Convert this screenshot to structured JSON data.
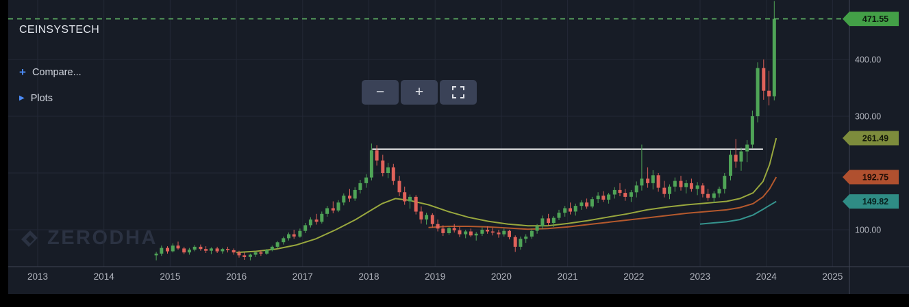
{
  "header": {
    "symbol": "CEINSYSTECH",
    "compare": {
      "icon": "+",
      "label": "Compare..."
    },
    "plots": {
      "icon": "▶",
      "label": "Plots"
    }
  },
  "toolbar": {
    "zoom_out_icon": "−",
    "zoom_in_icon": "+",
    "fullscreen_icon": "expand-corners"
  },
  "watermark": {
    "text": "ZERODHA"
  },
  "colors": {
    "background": "#171c26",
    "grid": "#232836",
    "axis_text": "#b2b5be",
    "separator": "#3f4454",
    "accent_blue": "#4c8bf5"
  },
  "time_axis": {
    "years": [
      2013,
      2014,
      2015,
      2016,
      2017,
      2018,
      2019,
      2020,
      2021,
      2022,
      2023,
      2024,
      2025
    ]
  },
  "price_axis": {
    "ticks": [
      {
        "label": "400.00",
        "price": 400
      },
      {
        "label": "300.00",
        "price": 300
      },
      {
        "label": "100.00",
        "price": 100
      }
    ],
    "tags": [
      {
        "value": "471.55",
        "price": 471.55,
        "color": "#43a047",
        "text_color": "#0c1a0e",
        "kind": "last-price"
      },
      {
        "value": "261.49",
        "price": 261.49,
        "color": "#7d8c3c",
        "text_color": "#14180a",
        "kind": "ma-long"
      },
      {
        "value": "192.75",
        "price": 192.75,
        "color": "#b0502f",
        "text_color": "#1e0d06",
        "kind": "ma-mid"
      },
      {
        "value": "149.82",
        "price": 149.82,
        "color": "#2f8c85",
        "text_color": "#07211f",
        "kind": "ma-short"
      }
    ]
  },
  "chart_data": {
    "type": "candlestick",
    "symbol": "CEINSYSTECH",
    "interval": "monthly",
    "x_range": [
      2012.56,
      2025.26
    ],
    "y_range_price": [
      35,
      505
    ],
    "grid_prices": [
      100,
      200,
      300,
      400
    ],
    "last_price": 471.55,
    "up_color": "#4fa457",
    "down_color": "#e0625a",
    "overlays": {
      "horizontal_line": {
        "price": 242,
        "from": 2018.05,
        "to": 2023.95,
        "color": "#e8e8e8"
      },
      "last_price_line": {
        "price": 471.55,
        "style": "dashed",
        "color": "#66bf6a"
      }
    },
    "candles": [
      [
        2014.79,
        55,
        61,
        46,
        58
      ],
      [
        2014.87,
        58,
        72,
        54,
        68
      ],
      [
        2014.96,
        68,
        71,
        58,
        62
      ],
      [
        2015.04,
        62,
        76,
        60,
        72
      ],
      [
        2015.12,
        72,
        79,
        65,
        67
      ],
      [
        2015.21,
        67,
        70,
        57,
        60
      ],
      [
        2015.29,
        60,
        68,
        56,
        65
      ],
      [
        2015.37,
        65,
        73,
        62,
        70
      ],
      [
        2015.46,
        70,
        74,
        63,
        66
      ],
      [
        2015.54,
        66,
        71,
        59,
        63
      ],
      [
        2015.62,
        63,
        69,
        57,
        67
      ],
      [
        2015.71,
        67,
        70,
        59,
        62
      ],
      [
        2015.79,
        62,
        68,
        58,
        66
      ],
      [
        2015.87,
        66,
        70,
        60,
        64
      ],
      [
        2015.96,
        64,
        67,
        56,
        60
      ],
      [
        2016.04,
        60,
        63,
        51,
        55
      ],
      [
        2016.12,
        55,
        60,
        47,
        52
      ],
      [
        2016.21,
        52,
        58,
        46,
        56
      ],
      [
        2016.29,
        56,
        62,
        52,
        60
      ],
      [
        2016.37,
        60,
        64,
        54,
        58
      ],
      [
        2016.46,
        58,
        66,
        56,
        64
      ],
      [
        2016.54,
        64,
        72,
        62,
        70
      ],
      [
        2016.62,
        70,
        80,
        67,
        78
      ],
      [
        2016.71,
        78,
        88,
        74,
        85
      ],
      [
        2016.79,
        85,
        95,
        81,
        92
      ],
      [
        2016.87,
        92,
        100,
        84,
        88
      ],
      [
        2016.96,
        88,
        102,
        86,
        98
      ],
      [
        2017.04,
        98,
        112,
        94,
        108
      ],
      [
        2017.12,
        108,
        122,
        104,
        118
      ],
      [
        2017.21,
        118,
        128,
        109,
        114
      ],
      [
        2017.29,
        114,
        132,
        111,
        128
      ],
      [
        2017.37,
        128,
        142,
        123,
        138
      ],
      [
        2017.46,
        138,
        150,
        129,
        134
      ],
      [
        2017.54,
        134,
        152,
        131,
        148
      ],
      [
        2017.62,
        148,
        164,
        143,
        160
      ],
      [
        2017.71,
        160,
        172,
        149,
        155
      ],
      [
        2017.79,
        155,
        175,
        151,
        170
      ],
      [
        2017.87,
        170,
        188,
        164,
        182
      ],
      [
        2017.96,
        182,
        198,
        174,
        192
      ],
      [
        2018.04,
        192,
        252,
        187,
        240
      ],
      [
        2018.12,
        240,
        249,
        213,
        222
      ],
      [
        2018.21,
        222,
        232,
        194,
        200
      ],
      [
        2018.29,
        200,
        218,
        191,
        210
      ],
      [
        2018.37,
        210,
        216,
        179,
        186
      ],
      [
        2018.46,
        186,
        195,
        159,
        166
      ],
      [
        2018.54,
        166,
        176,
        144,
        150
      ],
      [
        2018.62,
        150,
        162,
        137,
        158
      ],
      [
        2018.71,
        158,
        161,
        127,
        132
      ],
      [
        2018.79,
        132,
        141,
        111,
        118
      ],
      [
        2018.87,
        118,
        130,
        109,
        126
      ],
      [
        2018.96,
        126,
        129,
        104,
        110
      ],
      [
        2019.04,
        110,
        118,
        97,
        102
      ],
      [
        2019.12,
        102,
        108,
        89,
        94
      ],
      [
        2019.21,
        94,
        106,
        91,
        103
      ],
      [
        2019.29,
        103,
        110,
        95,
        99
      ],
      [
        2019.37,
        99,
        105,
        87,
        92
      ],
      [
        2019.46,
        92,
        100,
        85,
        97
      ],
      [
        2019.54,
        97,
        102,
        87,
        90
      ],
      [
        2019.62,
        90,
        96,
        81,
        93
      ],
      [
        2019.71,
        93,
        104,
        89,
        100
      ],
      [
        2019.79,
        100,
        106,
        93,
        97
      ],
      [
        2019.87,
        97,
        103,
        90,
        95
      ],
      [
        2019.96,
        95,
        100,
        86,
        92
      ],
      [
        2020.04,
        92,
        102,
        88,
        98
      ],
      [
        2020.12,
        98,
        100,
        83,
        87
      ],
      [
        2020.21,
        87,
        90,
        61,
        70
      ],
      [
        2020.29,
        70,
        88,
        65,
        84
      ],
      [
        2020.37,
        84,
        92,
        77,
        88
      ],
      [
        2020.46,
        88,
        102,
        84,
        98
      ],
      [
        2020.54,
        98,
        110,
        93,
        106
      ],
      [
        2020.62,
        106,
        125,
        101,
        120
      ],
      [
        2020.71,
        120,
        128,
        107,
        112
      ],
      [
        2020.79,
        112,
        124,
        105,
        121
      ],
      [
        2020.87,
        121,
        135,
        117,
        130
      ],
      [
        2020.96,
        130,
        142,
        123,
        138
      ],
      [
        2021.04,
        138,
        148,
        127,
        132
      ],
      [
        2021.12,
        132,
        146,
        125,
        142
      ],
      [
        2021.21,
        142,
        152,
        135,
        148
      ],
      [
        2021.29,
        148,
        155,
        137,
        141
      ],
      [
        2021.37,
        141,
        158,
        138,
        154
      ],
      [
        2021.46,
        154,
        166,
        147,
        160
      ],
      [
        2021.54,
        160,
        168,
        149,
        153
      ],
      [
        2021.62,
        153,
        165,
        146,
        162
      ],
      [
        2021.71,
        162,
        175,
        155,
        170
      ],
      [
        2021.79,
        170,
        182,
        159,
        165
      ],
      [
        2021.87,
        165,
        172,
        151,
        158
      ],
      [
        2021.96,
        158,
        170,
        149,
        166
      ],
      [
        2022.04,
        166,
        185,
        157,
        178
      ],
      [
        2022.12,
        178,
        250,
        169,
        190
      ],
      [
        2022.21,
        190,
        210,
        174,
        182
      ],
      [
        2022.29,
        182,
        205,
        171,
        196
      ],
      [
        2022.37,
        196,
        200,
        167,
        174
      ],
      [
        2022.46,
        174,
        186,
        157,
        163
      ],
      [
        2022.54,
        163,
        180,
        154,
        176
      ],
      [
        2022.62,
        176,
        192,
        167,
        186
      ],
      [
        2022.71,
        186,
        195,
        169,
        175
      ],
      [
        2022.79,
        175,
        188,
        164,
        182
      ],
      [
        2022.87,
        182,
        190,
        167,
        172
      ],
      [
        2022.96,
        172,
        184,
        161,
        178
      ],
      [
        2023.04,
        178,
        182,
        157,
        163
      ],
      [
        2023.12,
        163,
        172,
        151,
        156
      ],
      [
        2023.21,
        156,
        168,
        147,
        164
      ],
      [
        2023.29,
        164,
        176,
        157,
        172
      ],
      [
        2023.37,
        172,
        200,
        164,
        195
      ],
      [
        2023.46,
        195,
        240,
        187,
        232
      ],
      [
        2023.54,
        232,
        260,
        209,
        220
      ],
      [
        2023.62,
        220,
        245,
        204,
        238
      ],
      [
        2023.71,
        238,
        258,
        219,
        250
      ],
      [
        2023.79,
        250,
        310,
        244,
        300
      ],
      [
        2023.87,
        300,
        395,
        289,
        385
      ],
      [
        2023.96,
        385,
        400,
        329,
        345
      ],
      [
        2024.04,
        345,
        380,
        319,
        335
      ],
      [
        2024.12,
        335,
        503,
        328,
        471.55
      ]
    ],
    "moving_averages": [
      {
        "name": "ma-long-green",
        "color": "#99a83e",
        "last_value": 261.49,
        "points": [
          [
            2016.0,
            60
          ],
          [
            2016.3,
            62
          ],
          [
            2016.6,
            66
          ],
          [
            2016.9,
            73
          ],
          [
            2017.2,
            84
          ],
          [
            2017.5,
            100
          ],
          [
            2017.8,
            118
          ],
          [
            2018.0,
            132
          ],
          [
            2018.2,
            146
          ],
          [
            2018.4,
            155
          ],
          [
            2018.6,
            152
          ],
          [
            2018.9,
            144
          ],
          [
            2019.2,
            132
          ],
          [
            2019.5,
            122
          ],
          [
            2019.8,
            115
          ],
          [
            2020.1,
            110
          ],
          [
            2020.4,
            107
          ],
          [
            2020.7,
            107
          ],
          [
            2021.0,
            111
          ],
          [
            2021.3,
            116
          ],
          [
            2021.6,
            122
          ],
          [
            2021.9,
            128
          ],
          [
            2022.2,
            135
          ],
          [
            2022.5,
            140
          ],
          [
            2022.8,
            144
          ],
          [
            2023.1,
            147
          ],
          [
            2023.4,
            150
          ],
          [
            2023.6,
            155
          ],
          [
            2023.8,
            165
          ],
          [
            2023.95,
            185
          ],
          [
            2024.05,
            215
          ],
          [
            2024.15,
            261.49
          ]
        ]
      },
      {
        "name": "ma-mid-orange",
        "color": "#b5592d",
        "last_value": 192.75,
        "points": [
          [
            2018.9,
            104
          ],
          [
            2019.2,
            106
          ],
          [
            2019.5,
            106
          ],
          [
            2019.8,
            105
          ],
          [
            2020.1,
            103
          ],
          [
            2020.4,
            101
          ],
          [
            2020.7,
            102
          ],
          [
            2021.0,
            105
          ],
          [
            2021.3,
            109
          ],
          [
            2021.6,
            113
          ],
          [
            2021.9,
            117
          ],
          [
            2022.2,
            121
          ],
          [
            2022.5,
            125
          ],
          [
            2022.8,
            129
          ],
          [
            2023.1,
            132
          ],
          [
            2023.4,
            135
          ],
          [
            2023.6,
            139
          ],
          [
            2023.8,
            146
          ],
          [
            2023.95,
            158
          ],
          [
            2024.05,
            172
          ],
          [
            2024.15,
            192.75
          ]
        ]
      },
      {
        "name": "ma-short-teal",
        "color": "#35948e",
        "last_value": 149.82,
        "points": [
          [
            2023.0,
            110
          ],
          [
            2023.2,
            112
          ],
          [
            2023.4,
            114
          ],
          [
            2023.6,
            118
          ],
          [
            2023.8,
            126
          ],
          [
            2023.95,
            136
          ],
          [
            2024.05,
            143
          ],
          [
            2024.15,
            149.82
          ]
        ]
      }
    ]
  }
}
